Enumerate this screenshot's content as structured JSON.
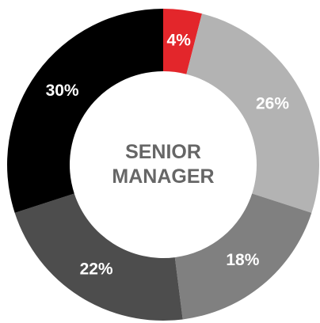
{
  "chart_data": {
    "type": "donut",
    "title": "SENIOR MANAGER",
    "values": [
      4,
      26,
      18,
      22,
      30
    ],
    "value_labels": [
      "4%",
      "26%",
      "18%",
      "22%",
      "30%"
    ],
    "colors": [
      "#e3262b",
      "#b3b3b3",
      "#808080",
      "#4d4d4d",
      "#000000"
    ]
  }
}
